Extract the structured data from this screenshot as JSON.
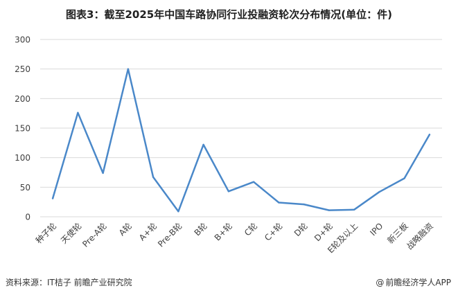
{
  "title": "图表3：截至2025年中国车路协同行业投融资轮次分布情况(单位：件)",
  "footer": {
    "source": "资料来源：IT桔子 前瞻产业研究院",
    "brand_symbol": "@",
    "brand": "前瞻经济学人APP"
  },
  "colors": {
    "line": "#4a88c9",
    "grid": "#d9d9d9",
    "axis_text": "#404040"
  },
  "chart_data": {
    "type": "line",
    "title": "图表3：截至2025年中国车路协同行业投融资轮次分布情况(单位：件)",
    "xlabel": "",
    "ylabel": "",
    "ylim": [
      0,
      300
    ],
    "yticks": [
      0,
      50,
      100,
      150,
      200,
      250,
      300
    ],
    "grid": true,
    "legend": "none",
    "categories": [
      "种子轮",
      "天使轮",
      "Pre-A轮",
      "A轮",
      "A+轮",
      "Pre-B轮",
      "B轮",
      "B+轮",
      "C轮",
      "C+轮",
      "D轮",
      "D+轮",
      "E轮及以上",
      "IPO",
      "新三板",
      "战略融资"
    ],
    "series": [
      {
        "values": [
          31,
          176,
          74,
          250,
          67,
          9,
          122,
          43,
          59,
          24,
          21,
          11,
          12,
          42,
          65,
          139
        ]
      }
    ]
  }
}
